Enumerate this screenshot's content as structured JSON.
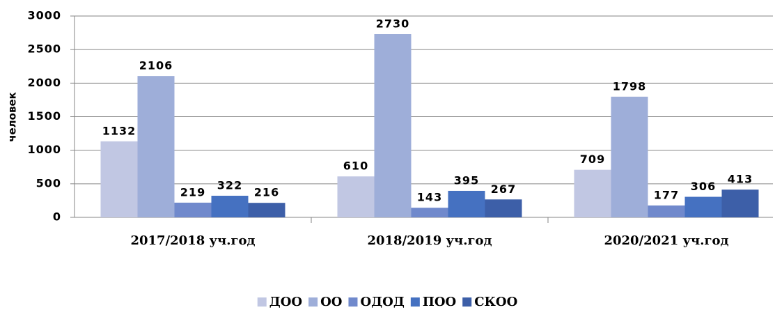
{
  "chart_data": {
    "type": "bar",
    "y_label": "человек",
    "categories": [
      "2017/2018 уч.год",
      "2018/2019 уч.год",
      "2020/2021 уч.год"
    ],
    "series": [
      {
        "name": "ДОО",
        "color": "#c1c7e3",
        "values": [
          1132,
          610,
          709
        ]
      },
      {
        "name": "ОО",
        "color": "#9eaed9",
        "values": [
          2106,
          2730,
          1798
        ]
      },
      {
        "name": "ОДОД",
        "color": "#7089cc",
        "values": [
          219,
          143,
          177
        ]
      },
      {
        "name": "ПОО",
        "color": "#4571c1",
        "values": [
          322,
          395,
          306
        ]
      },
      {
        "name": "СКОО",
        "color": "#3d5fa8",
        "values": [
          216,
          267,
          413
        ]
      }
    ],
    "ylim": [
      0,
      3000
    ],
    "yticks": [
      0,
      500,
      1000,
      1500,
      2000,
      2500,
      3000
    ],
    "grid": true,
    "legend": "bottom"
  }
}
